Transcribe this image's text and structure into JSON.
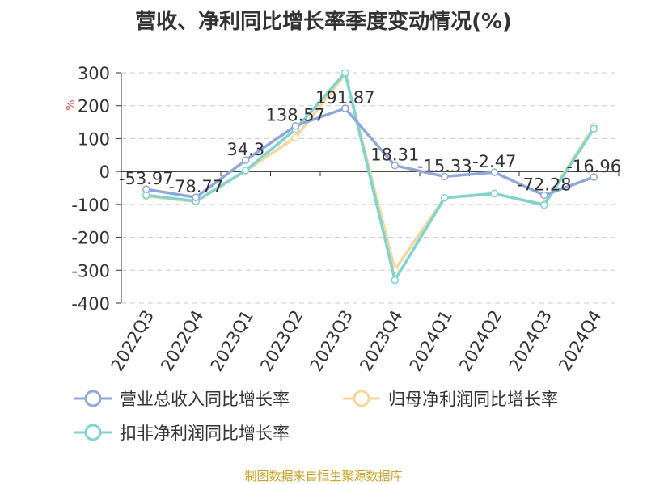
{
  "title": "营收、净利同比增长率季度变动情况(%)",
  "source": "制图数据来自恒生聚源数据库",
  "colors": {
    "revenue": "#8fa8d8",
    "parent_profit": "#f5d79e",
    "deducted_profit": "#7fd3d0"
  },
  "chart_data": {
    "type": "line",
    "title": "营收、净利同比增长率季度变动情况(%)",
    "ylabel": "%",
    "xlabel": "",
    "ylim": [
      -400,
      300
    ],
    "yticks": [
      300,
      200,
      100,
      0,
      -100,
      -200,
      -300,
      -400
    ],
    "grid": true,
    "legend_position": "bottom",
    "categories": [
      "2022Q3",
      "2022Q4",
      "2023Q1",
      "2023Q2",
      "2023Q3",
      "2023Q4",
      "2024Q1",
      "2024Q2",
      "2024Q3",
      "2024Q4"
    ],
    "series": [
      {
        "name": "营业总收入同比增长率",
        "color": "#8fa8d8",
        "values": [
          -53.97,
          -78.77,
          34.3,
          138.57,
          191.87,
          18.31,
          -15.33,
          -2.47,
          -72.28,
          -16.96
        ],
        "labels": [
          "-53.97",
          "-78.77",
          "34.3",
          "138.57",
          "191.87",
          "18.31",
          "-15.33",
          "-2.47",
          "-72.28",
          "-16.96"
        ]
      },
      {
        "name": "归母净利润同比增长率",
        "color": "#f5d79e",
        "values": [
          -75,
          -92,
          2,
          103,
          296,
          -298,
          -80,
          -68,
          -100,
          136
        ]
      },
      {
        "name": "扣非净利润同比增长率",
        "color": "#7fd3d0",
        "values": [
          -72,
          -90,
          3,
          128,
          300,
          -330,
          -80,
          -67,
          -102,
          130
        ]
      }
    ]
  }
}
